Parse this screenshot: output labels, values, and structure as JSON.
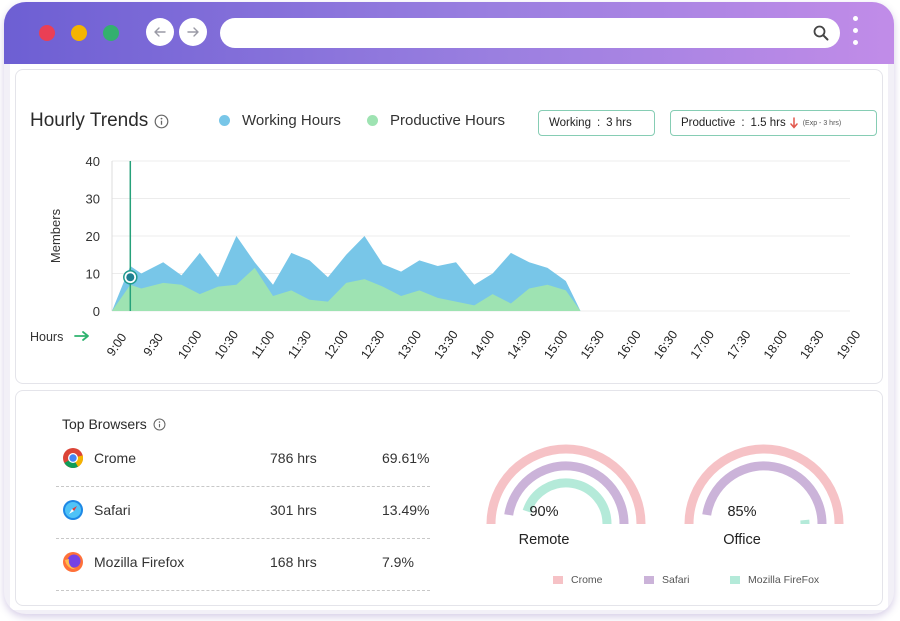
{
  "window": {
    "controls": [
      "close",
      "minimize",
      "maximize"
    ],
    "url": ""
  },
  "trends": {
    "title": "Hourly Trends",
    "legend": [
      {
        "label": "Working Hours",
        "color": "#78c6e8"
      },
      {
        "label": "Productive Hours",
        "color": "#9ee3b2"
      }
    ],
    "working_pill": {
      "label": "Working",
      "sep": ":",
      "value": "3 hrs"
    },
    "productive_pill": {
      "label": "Productive",
      "sep": ":",
      "value": "1.5 hrs",
      "note": "(Exp - 3 hrs)"
    },
    "hours_label": "Hours"
  },
  "chart_data": {
    "type": "area",
    "title": "Hourly Trends",
    "ylabel": "Members",
    "xlabel": "Hours",
    "ylim": [
      0,
      40
    ],
    "yticks": [
      0,
      10,
      20,
      30,
      40
    ],
    "grid": true,
    "x": [
      "9:00",
      "9:30",
      "10:00",
      "10:30",
      "11:00",
      "11:30",
      "12:00",
      "12:30",
      "13:00",
      "13:30",
      "14:00",
      "14:30",
      "15:00",
      "15:30",
      "16:00",
      "16:30",
      "17:00",
      "17:30",
      "18:00",
      "18:30",
      "19:00"
    ],
    "series": [
      {
        "name": "Working Hours",
        "color": "#78c6e8",
        "points": [
          [
            0,
            0
          ],
          [
            0.5,
            12
          ],
          [
            0.8,
            10
          ],
          [
            1.4,
            13
          ],
          [
            1.9,
            9.5
          ],
          [
            2.4,
            15.5
          ],
          [
            2.9,
            9
          ],
          [
            3.4,
            20
          ],
          [
            3.9,
            13
          ],
          [
            4.4,
            7
          ],
          [
            4.9,
            15.5
          ],
          [
            5.4,
            13.5
          ],
          [
            5.9,
            9
          ],
          [
            6.4,
            15
          ],
          [
            6.9,
            20
          ],
          [
            7.4,
            12.5
          ],
          [
            7.9,
            10.5
          ],
          [
            8.4,
            13.5
          ],
          [
            8.9,
            12
          ],
          [
            9.4,
            13
          ],
          [
            9.9,
            7
          ],
          [
            10.4,
            10
          ],
          [
            10.9,
            15.5
          ],
          [
            11.4,
            13
          ],
          [
            11.9,
            11.5
          ],
          [
            12.4,
            8
          ],
          [
            12.6,
            4
          ],
          [
            12.8,
            0
          ]
        ]
      },
      {
        "name": "Productive Hours",
        "color": "#9ee3b2",
        "points": [
          [
            0,
            0
          ],
          [
            0.5,
            7
          ],
          [
            0.8,
            6
          ],
          [
            1.4,
            7.5
          ],
          [
            1.9,
            7
          ],
          [
            2.4,
            4.5
          ],
          [
            2.9,
            6.5
          ],
          [
            3.4,
            7
          ],
          [
            3.9,
            11.5
          ],
          [
            4.4,
            4
          ],
          [
            4.9,
            5.5
          ],
          [
            5.4,
            3
          ],
          [
            5.9,
            2.5
          ],
          [
            6.4,
            7.5
          ],
          [
            6.9,
            8.5
          ],
          [
            7.4,
            6.5
          ],
          [
            7.9,
            4
          ],
          [
            8.4,
            5.5
          ],
          [
            8.9,
            3.5
          ],
          [
            9.4,
            2.5
          ],
          [
            9.9,
            1.5
          ],
          [
            10.4,
            4.5
          ],
          [
            10.9,
            2
          ],
          [
            11.4,
            6
          ],
          [
            11.9,
            7
          ],
          [
            12.4,
            5.5
          ],
          [
            12.8,
            0
          ]
        ]
      }
    ],
    "marker": {
      "x": 0.5,
      "y": 9
    }
  },
  "browsers": {
    "title": "Top Browsers",
    "items": [
      {
        "name": "Crome",
        "hours": "786 hrs",
        "percent": "69.61%"
      },
      {
        "name": "Safari",
        "hours": "301 hrs",
        "percent": "13.49%"
      },
      {
        "name": "Mozilla Firefox",
        "hours": "168 hrs",
        "percent": "7.9%"
      }
    ]
  },
  "gauges": [
    {
      "label": "Remote",
      "value": "90%",
      "value_num": 90,
      "rings": [
        1.0,
        0.95,
        0.9
      ]
    },
    {
      "label": "Office",
      "value": "85%",
      "value_num": 85,
      "rings": [
        1.0,
        0.95,
        0.03
      ]
    }
  ],
  "gauge_legend": [
    {
      "label": "Crome",
      "color": "#f6c2c6"
    },
    {
      "label": "Safari",
      "color": "#cbb3d9"
    },
    {
      "label": "Mozilla FireFox",
      "color": "#b4ead9"
    }
  ]
}
